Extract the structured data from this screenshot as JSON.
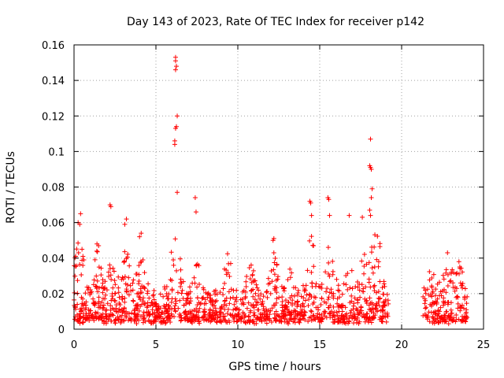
{
  "chart_data": {
    "type": "scatter",
    "title": "Day 143 of 2023, Rate Of TEC Index for receiver p142",
    "xlabel": "GPS time / hours",
    "ylabel": "ROTI / TECUs",
    "xlim": [
      0,
      25
    ],
    "ylim": [
      0,
      0.16
    ],
    "xticks": [
      0,
      5,
      10,
      15,
      20,
      25
    ],
    "yticks": [
      0,
      0.02,
      0.04,
      0.06,
      0.08,
      0.1,
      0.12,
      0.14,
      0.16
    ],
    "xtick_labels": [
      "0",
      "5",
      "10",
      "15",
      "20",
      "25"
    ],
    "ytick_labels": [
      "0",
      "0.02",
      "0.04",
      "0.06",
      "0.08",
      "0.1",
      "0.12",
      "0.14",
      "0.16"
    ],
    "grid": true,
    "marker": "plus",
    "color": "#ff0000",
    "segments": [
      {
        "x_start": 0.0,
        "x_end": 19.2
      },
      {
        "x_start": 21.3,
        "x_end": 24.0
      }
    ],
    "highlights": [
      {
        "x": 6.2,
        "y": 0.153
      },
      {
        "x": 6.2,
        "y": 0.151
      },
      {
        "x": 6.25,
        "y": 0.148
      },
      {
        "x": 6.2,
        "y": 0.146
      },
      {
        "x": 6.3,
        "y": 0.12
      },
      {
        "x": 6.25,
        "y": 0.114
      },
      {
        "x": 6.2,
        "y": 0.113
      },
      {
        "x": 6.15,
        "y": 0.106
      },
      {
        "x": 6.15,
        "y": 0.104
      },
      {
        "x": 6.3,
        "y": 0.077
      },
      {
        "x": 7.4,
        "y": 0.074
      },
      {
        "x": 7.45,
        "y": 0.066
      },
      {
        "x": 18.1,
        "y": 0.107
      },
      {
        "x": 18.05,
        "y": 0.092
      },
      {
        "x": 18.1,
        "y": 0.091
      },
      {
        "x": 18.15,
        "y": 0.09
      },
      {
        "x": 18.2,
        "y": 0.079
      },
      {
        "x": 18.15,
        "y": 0.074
      },
      {
        "x": 18.05,
        "y": 0.067
      },
      {
        "x": 18.1,
        "y": 0.064
      },
      {
        "x": 15.5,
        "y": 0.074
      },
      {
        "x": 15.55,
        "y": 0.073
      },
      {
        "x": 14.4,
        "y": 0.072
      },
      {
        "x": 14.45,
        "y": 0.071
      },
      {
        "x": 15.6,
        "y": 0.064
      },
      {
        "x": 14.5,
        "y": 0.064
      },
      {
        "x": 2.2,
        "y": 0.07
      },
      {
        "x": 2.25,
        "y": 0.069
      },
      {
        "x": 0.4,
        "y": 0.065
      },
      {
        "x": 0.25,
        "y": 0.06
      },
      {
        "x": 0.35,
        "y": 0.059
      },
      {
        "x": 3.2,
        "y": 0.062
      },
      {
        "x": 3.1,
        "y": 0.059
      },
      {
        "x": 17.6,
        "y": 0.063
      },
      {
        "x": 16.8,
        "y": 0.064
      },
      {
        "x": 12.2,
        "y": 0.051
      },
      {
        "x": 12.15,
        "y": 0.05
      },
      {
        "x": 12.2,
        "y": 0.043
      },
      {
        "x": 22.8,
        "y": 0.043
      },
      {
        "x": 23.5,
        "y": 0.038
      },
      {
        "x": 23.55,
        "y": 0.035
      },
      {
        "x": 4.1,
        "y": 0.054
      },
      {
        "x": 4.0,
        "y": 0.052
      },
      {
        "x": 1.4,
        "y": 0.048
      },
      {
        "x": 1.5,
        "y": 0.047
      },
      {
        "x": 0.6,
        "y": 0.039
      },
      {
        "x": 0.1,
        "y": 0.041
      }
    ]
  }
}
